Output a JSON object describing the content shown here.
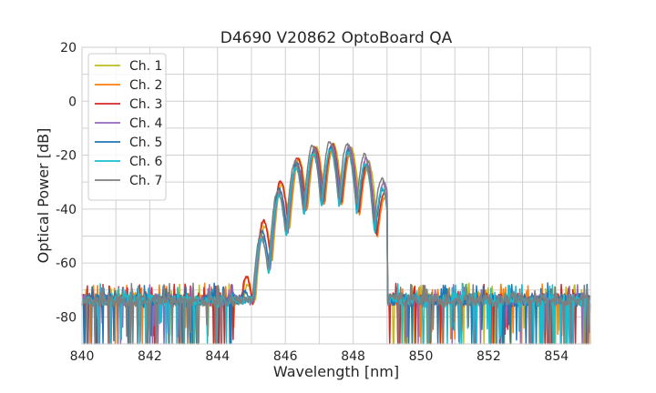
{
  "chart_data": {
    "type": "line",
    "title": "D4690 V20862 OptoBoard QA",
    "xlabel": "Wavelength [nm]",
    "ylabel": "Optical Power [dB]",
    "xlim": [
      840,
      855
    ],
    "ylim": [
      -90,
      20
    ],
    "x_ticks": [
      840,
      842,
      844,
      846,
      848,
      850,
      852,
      854
    ],
    "y_ticks": [
      20,
      0,
      -20,
      -40,
      -60,
      -80
    ],
    "grid": true,
    "legend_position": "top-left",
    "noise_floor_db": -73,
    "spectrum_start_nm": 844.5,
    "spectrum_end_nm": 849.0,
    "series": [
      {
        "name": "Ch. 1",
        "color": "#bcbd22",
        "center": 847.6,
        "peak": -16
      },
      {
        "name": "Ch. 2",
        "color": "#ff7f0e",
        "center": 847.5,
        "peak": -17
      },
      {
        "name": "Ch. 3",
        "color": "#d62728",
        "center": 847.5,
        "peak": -16
      },
      {
        "name": "Ch. 4",
        "color": "#9467bd",
        "center": 847.65,
        "peak": -16
      },
      {
        "name": "Ch. 5",
        "color": "#1f77b4",
        "center": 847.55,
        "peak": -17
      },
      {
        "name": "Ch. 6",
        "color": "#17becf",
        "center": 847.58,
        "peak": -18
      },
      {
        "name": "Ch. 7",
        "color": "#7f7f7f",
        "center": 847.6,
        "peak": -15
      }
    ]
  }
}
